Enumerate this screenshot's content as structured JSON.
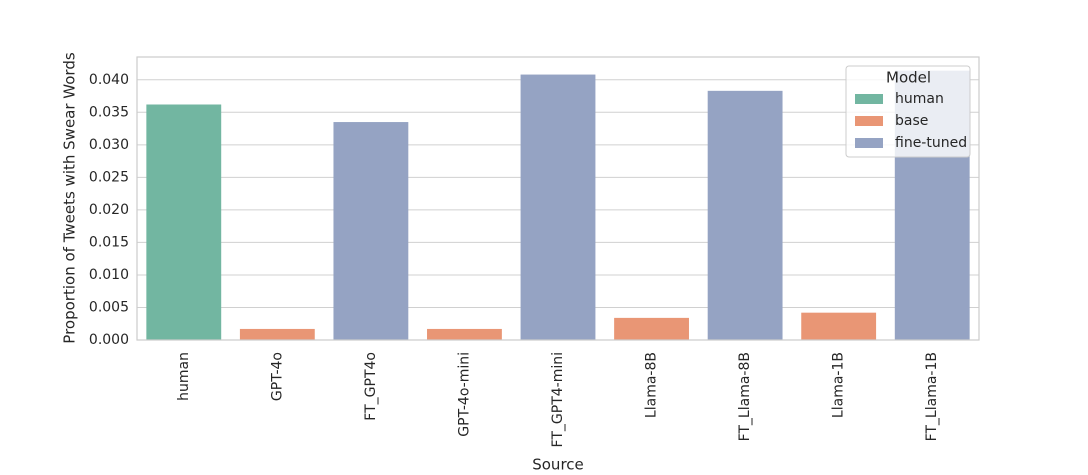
{
  "chart_data": {
    "type": "bar",
    "xlabel": "Source",
    "ylabel": "Proportion of Tweets with Swear Words",
    "categories": [
      "human",
      "GPT-4o",
      "FT_GPT4o",
      "GPT-4o-mini",
      "FT_GPT4-mini",
      "Llama-8B",
      "FT_Llama-8B",
      "Llama-1B",
      "FT_Llama-1B"
    ],
    "series": [
      {
        "name": "human",
        "color": "#72b6a1",
        "values": [
          0.0362,
          null,
          null,
          null,
          null,
          null,
          null,
          null,
          null
        ]
      },
      {
        "name": "base",
        "color": "#e99675",
        "values": [
          null,
          0.0017,
          null,
          0.0017,
          null,
          0.0034,
          null,
          0.0042,
          null
        ]
      },
      {
        "name": "fine-tuned",
        "color": "#95a3c3",
        "values": [
          null,
          null,
          0.0335,
          null,
          0.0408,
          null,
          0.0383,
          null,
          0.0414
        ]
      }
    ],
    "legend_title": "Model",
    "legend": "upper right",
    "ylim": [
      0,
      0.0435
    ],
    "yticks": [
      {
        "value": 0,
        "label": "0.000"
      },
      {
        "value": 0.005,
        "label": "0.005"
      },
      {
        "value": 0.01,
        "label": "0.010"
      },
      {
        "value": 0.015,
        "label": "0.015"
      },
      {
        "value": 0.02,
        "label": "0.020"
      },
      {
        "value": 0.025,
        "label": "0.025"
      },
      {
        "value": 0.03,
        "label": "0.030"
      },
      {
        "value": 0.035,
        "label": "0.035"
      },
      {
        "value": 0.04,
        "label": "0.040"
      }
    ],
    "grid": true
  }
}
